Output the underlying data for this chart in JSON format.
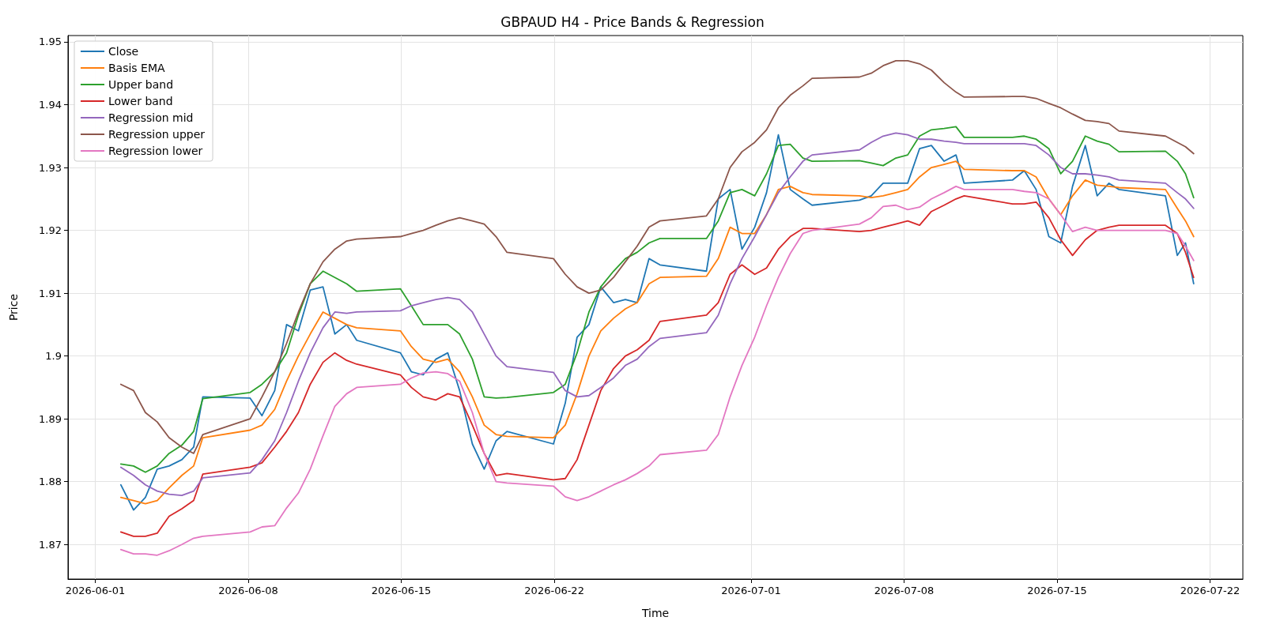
{
  "chart_data": {
    "type": "line",
    "title": "GBPAUD H4 - Price Bands & Regression",
    "xlabel": "Time",
    "ylabel": "Price",
    "x": [
      "2026-06-02T04:00",
      "2026-06-02T18:00",
      "2026-06-03T07:00",
      "2026-06-03T20:00",
      "2026-06-04T09:00",
      "2026-06-04T23:00",
      "2026-06-05T12:00",
      "2026-06-05T22:00",
      "2026-06-08T02:00",
      "2026-06-08T15:00",
      "2026-06-09T05:00",
      "2026-06-09T18:00",
      "2026-06-10T07:00",
      "2026-06-10T20:00",
      "2026-06-11T10:00",
      "2026-06-11T23:00",
      "2026-06-12T12:00",
      "2026-06-12T23:00",
      "2026-06-14T23:00",
      "2026-06-15T11:00",
      "2026-06-16T00:00",
      "2026-06-16T14:00",
      "2026-06-17T03:00",
      "2026-06-17T16:00",
      "2026-06-18T06:00",
      "2026-06-18T19:00",
      "2026-06-19T08:00",
      "2026-06-19T20:00",
      "2026-06-21T23:00",
      "2026-06-22T12:00",
      "2026-06-23T01:00",
      "2026-06-23T14:00",
      "2026-06-24T03:00",
      "2026-06-24T17:00",
      "2026-06-25T06:00",
      "2026-06-25T19:00",
      "2026-06-26T08:00",
      "2026-06-26T20:00",
      "2026-06-28T23:00",
      "2026-06-29T12:00",
      "2026-06-30T01:00",
      "2026-06-30T14:00",
      "2026-07-01T04:00",
      "2026-07-01T17:00",
      "2026-07-02T06:00",
      "2026-07-02T19:00",
      "2026-07-03T09:00",
      "2026-07-03T19:00",
      "2026-07-05T23:00",
      "2026-07-06T12:00",
      "2026-07-07T01:00",
      "2026-07-07T15:00",
      "2026-07-08T04:00",
      "2026-07-08T17:00",
      "2026-07-09T06:00",
      "2026-07-09T20:00",
      "2026-07-10T09:00",
      "2026-07-10T18:00",
      "2026-07-12T23:00",
      "2026-07-13T12:00",
      "2026-07-14T01:00",
      "2026-07-14T15:00",
      "2026-07-15T04:00",
      "2026-07-15T17:00",
      "2026-07-16T07:00",
      "2026-07-16T20:00",
      "2026-07-17T09:00",
      "2026-07-17T20:00",
      "2026-07-19T23:00",
      "2026-07-20T12:00",
      "2026-07-20T21:00",
      "2026-07-21T06:00"
    ],
    "series": [
      {
        "name": "Close",
        "color": "#1f77b4",
        "values": [
          1.8795,
          1.8755,
          1.8775,
          1.882,
          1.8825,
          1.8835,
          1.8855,
          1.8935,
          1.8933,
          1.8905,
          1.8945,
          1.905,
          1.904,
          1.9105,
          1.911,
          1.9035,
          1.905,
          1.9025,
          1.9005,
          1.8975,
          1.897,
          1.8995,
          1.9005,
          1.8945,
          1.886,
          1.882,
          1.8865,
          1.888,
          1.886,
          1.8925,
          1.903,
          1.905,
          1.911,
          1.9085,
          1.909,
          1.9085,
          1.9155,
          1.9145,
          1.9135,
          1.925,
          1.9265,
          1.917,
          1.9205,
          1.926,
          1.9352,
          1.9265,
          1.925,
          1.924,
          1.9248,
          1.9255,
          1.9275,
          1.9275,
          1.9275,
          1.933,
          1.9335,
          1.931,
          1.932,
          1.9275,
          1.928,
          1.9295,
          1.9265,
          1.919,
          1.918,
          1.927,
          1.9335,
          1.9255,
          1.9275,
          1.9265,
          1.9255,
          1.916,
          1.918,
          1.9115
        ]
      },
      {
        "name": "Basis EMA",
        "color": "#ff7f0e",
        "values": [
          1.8775,
          1.877,
          1.8765,
          1.877,
          1.879,
          1.881,
          1.8825,
          1.887,
          1.8882,
          1.889,
          1.8915,
          1.896,
          1.9,
          1.9035,
          1.907,
          1.906,
          1.905,
          1.9045,
          1.904,
          1.9015,
          1.8995,
          1.899,
          1.8995,
          1.8975,
          1.8935,
          1.889,
          1.8875,
          1.8872,
          1.887,
          1.889,
          1.894,
          1.9,
          1.904,
          1.906,
          1.9075,
          1.9085,
          1.9115,
          1.9125,
          1.9127,
          1.9155,
          1.9205,
          1.9195,
          1.9195,
          1.9225,
          1.9265,
          1.927,
          1.926,
          1.9257,
          1.9255,
          1.9252,
          1.9255,
          1.926,
          1.9265,
          1.9285,
          1.93,
          1.9305,
          1.931,
          1.9297,
          1.9295,
          1.9295,
          1.9285,
          1.925,
          1.9225,
          1.9255,
          1.928,
          1.9272,
          1.927,
          1.9268,
          1.9265,
          1.9235,
          1.9215,
          1.919
        ]
      },
      {
        "name": "Upper band",
        "color": "#2ca02c",
        "values": [
          1.8828,
          1.8825,
          1.8815,
          1.8825,
          1.8845,
          1.8858,
          1.888,
          1.8932,
          1.8942,
          1.8955,
          1.8975,
          1.9005,
          1.9065,
          1.9115,
          1.9135,
          1.9125,
          1.9115,
          1.9103,
          1.9107,
          1.908,
          1.905,
          1.905,
          1.905,
          1.9035,
          1.8995,
          1.8935,
          1.8933,
          1.8934,
          1.8942,
          1.8955,
          1.9005,
          1.907,
          1.911,
          1.9135,
          1.9155,
          1.9165,
          1.918,
          1.9187,
          1.9187,
          1.9215,
          1.926,
          1.9265,
          1.9255,
          1.929,
          1.9335,
          1.9337,
          1.9315,
          1.931,
          1.9311,
          1.9307,
          1.9303,
          1.9315,
          1.932,
          1.935,
          1.936,
          1.9362,
          1.9365,
          1.9348,
          1.9348,
          1.935,
          1.9345,
          1.933,
          1.929,
          1.931,
          1.935,
          1.9342,
          1.9337,
          1.9325,
          1.9326,
          1.931,
          1.929,
          1.9252
        ]
      },
      {
        "name": "Lower band",
        "color": "#d62728",
        "values": [
          1.872,
          1.8713,
          1.8713,
          1.8718,
          1.8745,
          1.8757,
          1.877,
          1.8812,
          1.8823,
          1.883,
          1.8855,
          1.888,
          1.891,
          1.8955,
          1.899,
          1.9005,
          1.8993,
          1.8987,
          1.897,
          1.895,
          1.8935,
          1.893,
          1.894,
          1.8935,
          1.889,
          1.8845,
          1.881,
          1.8813,
          1.8803,
          1.8805,
          1.8835,
          1.889,
          1.8945,
          1.898,
          1.9,
          1.901,
          1.9025,
          1.9055,
          1.9065,
          1.9085,
          1.913,
          1.9145,
          1.913,
          1.914,
          1.917,
          1.919,
          1.9203,
          1.9203,
          1.9198,
          1.92,
          1.9205,
          1.921,
          1.9215,
          1.9208,
          1.923,
          1.924,
          1.925,
          1.9255,
          1.9242,
          1.9242,
          1.9245,
          1.922,
          1.9185,
          1.916,
          1.9185,
          1.92,
          1.9205,
          1.9208,
          1.9208,
          1.9195,
          1.9165,
          1.9125
        ]
      },
      {
        "name": "Regression mid",
        "color": "#9467bd",
        "values": [
          1.8823,
          1.881,
          1.8795,
          1.8785,
          1.878,
          1.8778,
          1.8785,
          1.8806,
          1.8814,
          1.8835,
          1.8865,
          1.891,
          1.896,
          1.9005,
          1.9045,
          1.907,
          1.9068,
          1.907,
          1.9072,
          1.908,
          1.9085,
          1.909,
          1.9093,
          1.909,
          1.907,
          1.9035,
          1.9,
          1.8983,
          1.8974,
          1.8945,
          1.8935,
          1.8937,
          1.895,
          1.8965,
          1.8985,
          1.8995,
          1.9015,
          1.9028,
          1.9037,
          1.9065,
          1.9115,
          1.9155,
          1.919,
          1.9225,
          1.926,
          1.9285,
          1.931,
          1.932,
          1.9328,
          1.934,
          1.935,
          1.9355,
          1.9352,
          1.9345,
          1.9345,
          1.9342,
          1.934,
          1.9338,
          1.9338,
          1.9338,
          1.9335,
          1.932,
          1.93,
          1.929,
          1.929,
          1.9288,
          1.9285,
          1.928,
          1.9275,
          1.926,
          1.925,
          1.9235
        ]
      },
      {
        "name": "Regression upper",
        "color": "#8c564b",
        "values": [
          1.8955,
          1.8945,
          1.891,
          1.8895,
          1.887,
          1.8855,
          1.8845,
          1.8875,
          1.89,
          1.8935,
          1.8975,
          1.902,
          1.907,
          1.9115,
          1.915,
          1.917,
          1.9183,
          1.9186,
          1.919,
          1.9195,
          1.92,
          1.9208,
          1.9215,
          1.922,
          1.9215,
          1.921,
          1.919,
          1.9165,
          1.9155,
          1.913,
          1.911,
          1.91,
          1.9105,
          1.9125,
          1.915,
          1.9175,
          1.9205,
          1.9215,
          1.9223,
          1.925,
          1.93,
          1.9325,
          1.934,
          1.936,
          1.9395,
          1.9415,
          1.943,
          1.9442,
          1.9444,
          1.945,
          1.9462,
          1.947,
          1.947,
          1.9465,
          1.9455,
          1.9435,
          1.942,
          1.9412,
          1.9413,
          1.9413,
          1.941,
          1.9402,
          1.9395,
          1.9385,
          1.9375,
          1.9373,
          1.937,
          1.9358,
          1.935,
          1.934,
          1.9333,
          1.9322
        ]
      },
      {
        "name": "Regression lower",
        "color": "#e377c2",
        "values": [
          1.8692,
          1.8685,
          1.8685,
          1.8683,
          1.869,
          1.87,
          1.871,
          1.8713,
          1.872,
          1.8728,
          1.873,
          1.8758,
          1.8782,
          1.882,
          1.8873,
          1.892,
          1.894,
          1.895,
          1.8955,
          1.8965,
          1.8973,
          1.8975,
          1.8972,
          1.896,
          1.891,
          1.8845,
          1.88,
          1.8798,
          1.8793,
          1.8776,
          1.877,
          1.8776,
          1.8785,
          1.8795,
          1.8803,
          1.8813,
          1.8825,
          1.8843,
          1.885,
          1.8875,
          1.8935,
          1.8985,
          1.903,
          1.908,
          1.9125,
          1.9163,
          1.9195,
          1.92,
          1.921,
          1.922,
          1.9238,
          1.924,
          1.9233,
          1.9237,
          1.925,
          1.926,
          1.927,
          1.9265,
          1.9265,
          1.9262,
          1.926,
          1.925,
          1.9225,
          1.9198,
          1.9205,
          1.92,
          1.92,
          1.92,
          1.92,
          1.9195,
          1.9175,
          1.9152
        ]
      }
    ],
    "xlim": [
      "2026-05-30T18:00",
      "2026-07-23T12:00"
    ],
    "xticks": [
      "2026-06-01",
      "2026-06-08",
      "2026-06-15",
      "2026-06-22",
      "2026-07-01",
      "2026-07-08",
      "2026-07-15",
      "2026-07-22"
    ],
    "ylim": [
      1.8645,
      1.951
    ],
    "yticks": [
      1.87,
      1.88,
      1.89,
      1.9,
      1.91,
      1.92,
      1.93,
      1.94,
      1.95
    ],
    "grid": true,
    "legend": "top left",
    "marker": "none",
    "line_style": "solid"
  }
}
